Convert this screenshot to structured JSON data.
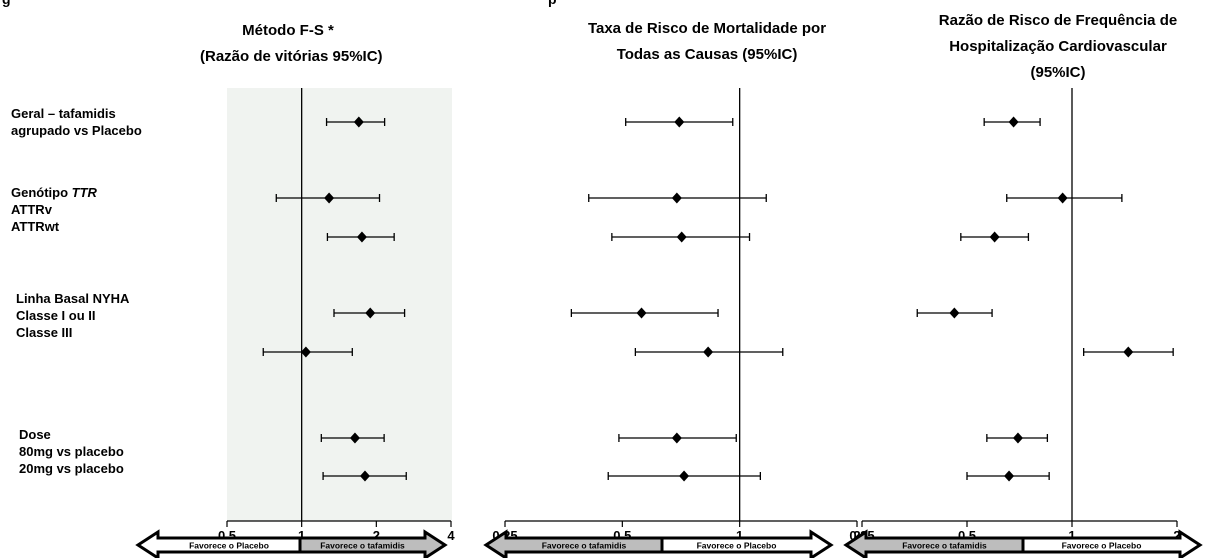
{
  "caption_fragment": "g",
  "caption_fragment_right": "p",
  "row_labels": {
    "overall": [
      "Geral – tafamidis",
      "agrupado vs  Placebo"
    ],
    "genotype_title": "Genótipo",
    "genotype_title_italic": "TTR",
    "genotype_items": [
      "ATTRv",
      "ATTRwt"
    ],
    "nyha": [
      "Linha Basal NYHA",
      "Classe I ou II",
      "Classe III"
    ],
    "dose": [
      "Dose",
      "80mg vs placebo",
      "20mg vs placebo"
    ]
  },
  "chart_data": [
    {
      "type": "forest",
      "title": [
        "Método F-S *",
        "(Razão de vitórias 95%IC)"
      ],
      "scale": "log",
      "xlim": [
        0.5,
        4
      ],
      "ticks": [
        0.5,
        1,
        2,
        4
      ],
      "tick_labels": [
        "0.5",
        "1",
        "2",
        "4"
      ],
      "reference": 1,
      "background": "#f0f3f0",
      "arrows": {
        "left": "Favorece o Placebo",
        "right": "Favorece o tafamidis",
        "left_fill": "#ffffff",
        "right_fill": "#bdbdbd"
      },
      "points": [
        {
          "row": "Geral – tafamidis agrupado vs Placebo",
          "est": 1.7,
          "lo": 1.26,
          "hi": 2.16
        },
        {
          "row": "ATTRv",
          "est": 1.29,
          "lo": 0.79,
          "hi": 2.06
        },
        {
          "row": "ATTRwt",
          "est": 1.75,
          "lo": 1.27,
          "hi": 2.36
        },
        {
          "row": "Classe I ou II",
          "est": 1.89,
          "lo": 1.35,
          "hi": 2.6
        },
        {
          "row": "Classe III",
          "est": 1.04,
          "lo": 0.7,
          "hi": 1.6
        },
        {
          "row": "80mg vs placebo",
          "est": 1.64,
          "lo": 1.2,
          "hi": 2.15
        },
        {
          "row": "20mg vs placebo",
          "est": 1.8,
          "lo": 1.22,
          "hi": 2.64
        }
      ]
    },
    {
      "type": "forest",
      "title": [
        "Taxa de Risco de Mortalidade por",
        "Todas as Causas (95%IC)"
      ],
      "scale": "log",
      "xlim": [
        0.25,
        2
      ],
      "ticks": [
        0.25,
        0.5,
        1,
        2
      ],
      "tick_labels": [
        "0.25",
        "0.5",
        "1",
        "2"
      ],
      "reference": 1,
      "arrows": {
        "left": "Favorece o tafamidis",
        "right": "Favorece o Placebo",
        "left_fill": "#bdbdbd",
        "right_fill": "#ffffff"
      },
      "points": [
        {
          "row": "Geral – tafamidis agrupado vs Placebo",
          "est": 0.7,
          "lo": 0.51,
          "hi": 0.96
        },
        {
          "row": "ATTRv",
          "est": 0.69,
          "lo": 0.41,
          "hi": 1.17
        },
        {
          "row": "ATTRwt",
          "est": 0.71,
          "lo": 0.47,
          "hi": 1.06
        },
        {
          "row": "Classe I ou II",
          "est": 0.56,
          "lo": 0.37,
          "hi": 0.88
        },
        {
          "row": "Classe III",
          "est": 0.83,
          "lo": 0.54,
          "hi": 1.29
        },
        {
          "row": "80mg vs placebo",
          "est": 0.69,
          "lo": 0.49,
          "hi": 0.98
        },
        {
          "row": "20mg vs placebo",
          "est": 0.72,
          "lo": 0.46,
          "hi": 1.13
        }
      ]
    },
    {
      "type": "forest",
      "title": [
        "Razão de Risco de Frequência de",
        "Hospitalização Cardiovascular",
        "(95%IC)"
      ],
      "scale": "log",
      "xlim": [
        0.25,
        2
      ],
      "ticks": [
        0.25,
        0.5,
        1,
        2
      ],
      "tick_labels": [
        "0.25",
        "0.5",
        "1",
        "2"
      ],
      "reference": 1,
      "arrows": {
        "left": "Favorece o tafamidis",
        "right": "Favorece o Placebo",
        "left_fill": "#bdbdbd",
        "right_fill": "#ffffff"
      },
      "points": [
        {
          "row": "Geral – tafamidis agrupado vs Placebo",
          "est": 0.68,
          "lo": 0.56,
          "hi": 0.81
        },
        {
          "row": "ATTRv",
          "est": 0.94,
          "lo": 0.65,
          "hi": 1.39
        },
        {
          "row": "ATTRwt",
          "est": 0.6,
          "lo": 0.48,
          "hi": 0.75
        },
        {
          "row": "Classe I ou II",
          "est": 0.46,
          "lo": 0.36,
          "hi": 0.59
        },
        {
          "row": "Classe III",
          "est": 1.45,
          "lo": 1.08,
          "hi": 1.95
        },
        {
          "row": "80mg vs placebo",
          "est": 0.7,
          "lo": 0.57,
          "hi": 0.85
        },
        {
          "row": "20mg vs placebo",
          "est": 0.66,
          "lo": 0.5,
          "hi": 0.86
        }
      ]
    }
  ]
}
